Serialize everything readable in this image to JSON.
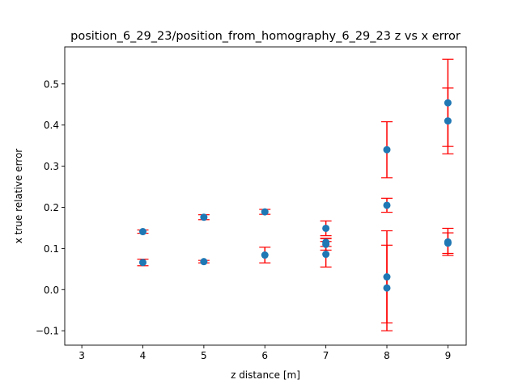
{
  "chart_data": {
    "type": "scatter",
    "title": "position_6_29_23/position_from_homography_6_29_23 z vs x error",
    "xlabel": "z distance [m]",
    "ylabel": "x true relative error",
    "xlim": [
      2.72,
      9.3
    ],
    "ylim": [
      -0.135,
      0.59
    ],
    "xticks": [
      3,
      4,
      5,
      6,
      7,
      8,
      9
    ],
    "xtick_labels": [
      "3",
      "4",
      "5",
      "6",
      "7",
      "8",
      "9"
    ],
    "yticks": [
      -0.1,
      0.0,
      0.1,
      0.2,
      0.3,
      0.4,
      0.5
    ],
    "ytick_labels": [
      "−0.1",
      "0.0",
      "0.1",
      "0.2",
      "0.3",
      "0.4",
      "0.5"
    ],
    "grid": false,
    "legend": "none",
    "marker_color": "#1f77b4",
    "errorbar_color": "#ff0000",
    "points": [
      {
        "x": 4,
        "y": 0.141,
        "err": 0.004
      },
      {
        "x": 4,
        "y": 0.066,
        "err": 0.008
      },
      {
        "x": 5,
        "y": 0.176,
        "err": 0.006
      },
      {
        "x": 5,
        "y": 0.068,
        "err": 0.003
      },
      {
        "x": 6,
        "y": 0.189,
        "err": 0.006
      },
      {
        "x": 6,
        "y": 0.084,
        "err": 0.019
      },
      {
        "x": 7,
        "y": 0.149,
        "err": 0.018
      },
      {
        "x": 7,
        "y": 0.115,
        "err": 0.01
      },
      {
        "x": 7,
        "y": 0.11,
        "err": 0.014
      },
      {
        "x": 7,
        "y": 0.086,
        "err": 0.031
      },
      {
        "x": 8,
        "y": 0.34,
        "err": 0.068
      },
      {
        "x": 8,
        "y": 0.205,
        "err": 0.017
      },
      {
        "x": 8,
        "y": 0.031,
        "err": 0.112
      },
      {
        "x": 8,
        "y": 0.004,
        "err": 0.104
      },
      {
        "x": 9,
        "y": 0.454,
        "err": 0.106
      },
      {
        "x": 9,
        "y": 0.41,
        "err": 0.08
      },
      {
        "x": 9,
        "y": 0.116,
        "err": 0.033
      },
      {
        "x": 9,
        "y": 0.113,
        "err": 0.025
      }
    ]
  }
}
